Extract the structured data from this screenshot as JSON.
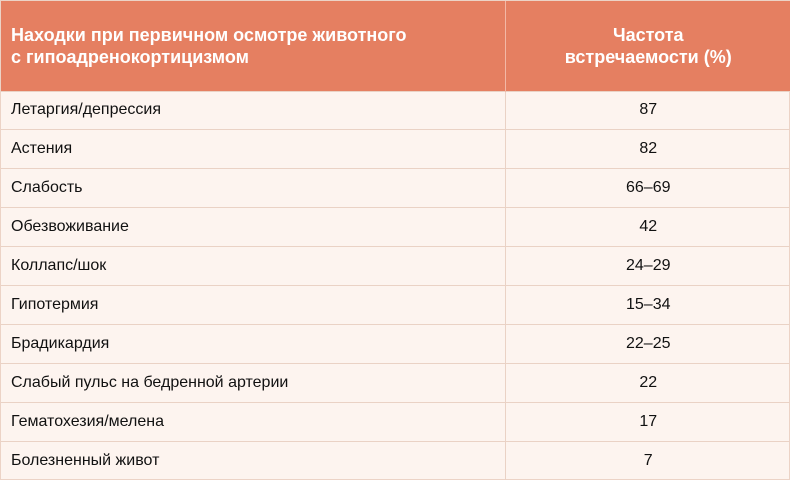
{
  "header": {
    "col1_line1": "Находки при первичном осмотре животного",
    "col1_line2": "с гипоадренокортицизмом",
    "col2_line1": "Частота",
    "col2_line2": "встречаемости (%)"
  },
  "rows": [
    {
      "finding": "Летаргия/депрессия",
      "freq": "87"
    },
    {
      "finding": "Астения",
      "freq": "82"
    },
    {
      "finding": "Слабость",
      "freq": "66–69"
    },
    {
      "finding": "Обезвоживание",
      "freq": "42"
    },
    {
      "finding": "Коллапс/шок",
      "freq": "24–29"
    },
    {
      "finding": "Гипотермия",
      "freq": "15–34"
    },
    {
      "finding": "Брадикардия",
      "freq": "22–25"
    },
    {
      "finding": "Слабый пульс на бедренной артерии",
      "freq": "22"
    },
    {
      "finding": "Гематохезия/мелена",
      "freq": "17"
    },
    {
      "finding": "Болезненный живот",
      "freq": "7"
    }
  ],
  "colors": {
    "header_bg": "#e57f61",
    "row_bg": "#fdf4ef",
    "border": "#ead2c5"
  }
}
